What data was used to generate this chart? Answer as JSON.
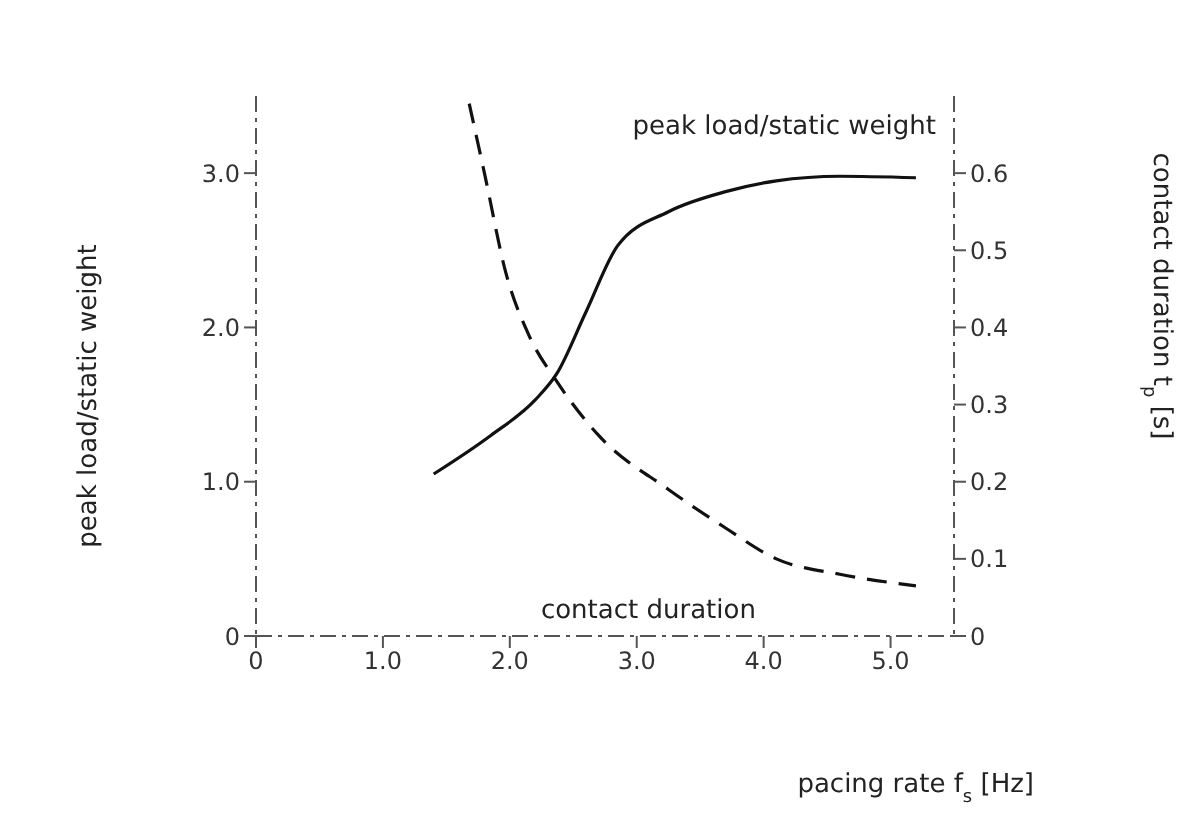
{
  "chart_data": {
    "type": "line",
    "xlabel": "pacing rate f$_{s}$ [Hz]",
    "ylabel": "peak load/static weight",
    "y2label": "contact duration t$_{p}$ [s]",
    "xlim": [
      0,
      5.5
    ],
    "xticks": [
      0,
      {
        "value": 1,
        "label": "1.0"
      },
      {
        "value": 2,
        "label": "2.0"
      },
      {
        "value": 3,
        "label": "3.0"
      },
      {
        "value": 4,
        "label": "4.0"
      },
      {
        "value": 5,
        "label": "5.0"
      }
    ],
    "ylim": [
      0,
      3.5
    ],
    "yticks": [
      0,
      {
        "value": 1,
        "label": "1.0"
      },
      {
        "value": 2,
        "label": "2.0"
      },
      {
        "value": 3,
        "label": "3.0"
      }
    ],
    "y2lim": [
      0,
      0.7
    ],
    "y2ticks": [
      0,
      0.1,
      0.2,
      0.3,
      0.4,
      0.5,
      0.6
    ],
    "grid": false,
    "marker": "none",
    "series": [
      {
        "name": "peak load/static weight",
        "color": "#111111",
        "line_style": "solid",
        "x": [
          1.4,
          1.85,
          2.2,
          2.37,
          2.6,
          2.85,
          3.25,
          3.7,
          4.1,
          4.6,
          5.2
        ],
        "values": [
          1.05,
          1.3,
          1.53,
          1.7,
          2.1,
          2.53,
          2.75,
          2.88,
          2.95,
          2.98,
          2.97
        ]
      },
      {
        "name": "contact duration",
        "color": "#111111",
        "line_style": "dashed",
        "axis": "y2",
        "x": [
          1.68,
          1.8,
          1.97,
          2.15,
          2.37,
          2.7,
          3.25,
          3.7,
          4.1,
          4.6,
          5.2
        ],
        "values": [
          0.69,
          0.6,
          0.47,
          0.39,
          0.33,
          0.26,
          0.19,
          0.14,
          0.1,
          0.08,
          0.065
        ]
      }
    ]
  }
}
